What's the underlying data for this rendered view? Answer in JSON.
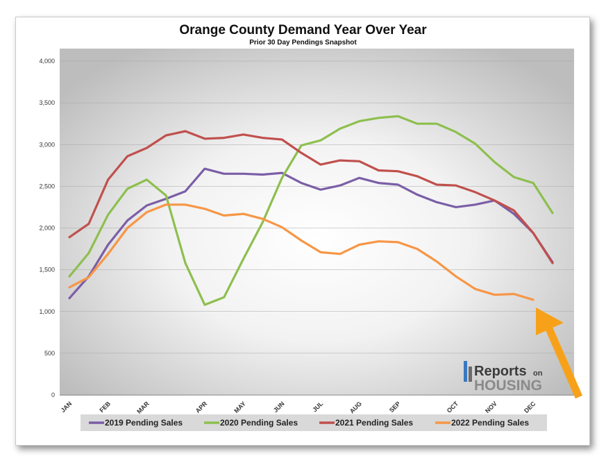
{
  "chart_data": {
    "type": "line",
    "title": "Orange County Demand Year Over Year",
    "subtitle": "Prior 30 Day Pendings Snapshot",
    "xlabel": "",
    "ylabel": "",
    "ylim": [
      0,
      4000
    ],
    "yticks": [
      0,
      500,
      1000,
      1500,
      2000,
      2500,
      3000,
      3500,
      4000
    ],
    "ytick_labels": [
      "0",
      "500",
      "1,000",
      "1,500",
      "2,000",
      "2,500",
      "3,000",
      "3,500",
      "4,000"
    ],
    "x_tick_labels": [
      "JAN",
      "FEB",
      "MAR",
      "APR",
      "MAY",
      "JUN",
      "JUL",
      "AUG",
      "SEP",
      "OCT",
      "NOV",
      "DEC"
    ],
    "x_tick_positions": [
      0,
      2,
      4,
      7,
      9,
      11,
      13,
      15,
      17,
      20,
      22,
      24
    ],
    "x_points": 26,
    "grid": "horizontal",
    "legend_position": "bottom",
    "series": [
      {
        "name": "2019 Pending Sales",
        "color": "#7b5ea7",
        "values": [
          1160,
          1420,
          1800,
          2090,
          2270,
          2350,
          2440,
          2710,
          2650,
          2650,
          2640,
          2660,
          2540,
          2460,
          2510,
          2600,
          2540,
          2520,
          2400,
          2310,
          2250,
          2280,
          2330,
          2170,
          1940,
          1590
        ]
      },
      {
        "name": "2020 Pending Sales",
        "color": "#8dbf4e",
        "values": [
          1420,
          1700,
          2160,
          2470,
          2580,
          2390,
          1580,
          1080,
          1170,
          1630,
          2070,
          2600,
          2990,
          3050,
          3190,
          3280,
          3320,
          3340,
          3250,
          3250,
          3150,
          3010,
          2790,
          2610,
          2540,
          2180
        ]
      },
      {
        "name": "2021 Pending Sales",
        "color": "#c0504d",
        "values": [
          1890,
          2050,
          2580,
          2860,
          2960,
          3110,
          3160,
          3070,
          3080,
          3120,
          3080,
          3060,
          2900,
          2760,
          2810,
          2800,
          2690,
          2680,
          2620,
          2520,
          2510,
          2430,
          2330,
          2210,
          1940,
          1580
        ]
      },
      {
        "name": "2022 Pending Sales",
        "color": "#f79646",
        "values": [
          1290,
          1410,
          1690,
          2000,
          2190,
          2280,
          2280,
          2230,
          2150,
          2170,
          2110,
          2010,
          1850,
          1710,
          1690,
          1800,
          1840,
          1830,
          1750,
          1600,
          1420,
          1270,
          1200,
          1210,
          1140
        ]
      }
    ]
  },
  "logo": {
    "text_reports": "Reports",
    "text_on": "on",
    "text_housing": "HOUSING"
  },
  "annotation": {
    "arrow_color": "#f7a11a"
  }
}
